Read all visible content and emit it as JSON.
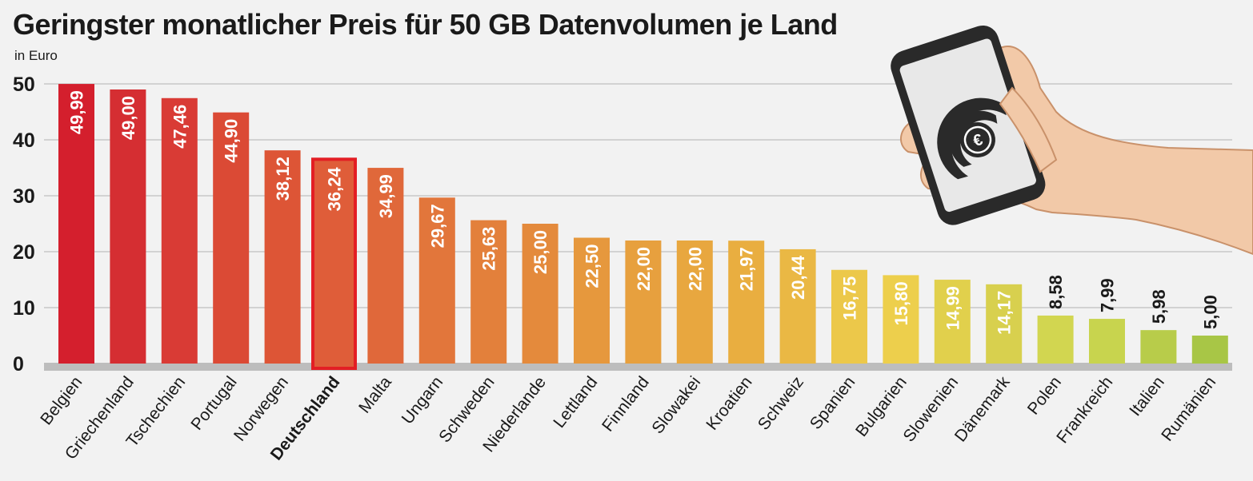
{
  "chart_data": {
    "type": "bar",
    "title": "Geringster monatlicher Preis für 50 GB Datenvolumen je Land",
    "subtitle": "in Euro",
    "xlabel": "",
    "ylabel": "in Euro",
    "ylim": [
      0,
      50
    ],
    "yticks": [
      0,
      10,
      20,
      30,
      40,
      50
    ],
    "grid": true,
    "highlight": "Deutschland",
    "categories": [
      "Belgien",
      "Griechenland",
      "Tschechien",
      "Portugal",
      "Norwegen",
      "Deutschland",
      "Malta",
      "Ungarn",
      "Schweden",
      "Niederlande",
      "Lettland",
      "Finnland",
      "Slowakei",
      "Kroatien",
      "Schweiz",
      "Spanien",
      "Bulgarien",
      "Slowenien",
      "Dänemark",
      "Polen",
      "Frankreich",
      "Italien",
      "Rumänien"
    ],
    "values": [
      49.99,
      49.0,
      47.46,
      44.9,
      38.12,
      36.24,
      34.99,
      29.67,
      25.63,
      25.0,
      22.5,
      22.0,
      22.0,
      21.97,
      20.44,
      16.75,
      15.8,
      14.99,
      14.17,
      8.58,
      7.99,
      5.98,
      5.0
    ],
    "value_labels": [
      "49,99",
      "49,00",
      "47,46",
      "44,90",
      "38,12",
      "36,24",
      "34,99",
      "29,67",
      "25,63",
      "25,00",
      "22,50",
      "22,00",
      "22,00",
      "21,97",
      "20,44",
      "16,75",
      "15,80",
      "14,99",
      "14,17",
      "8,58",
      "7,99",
      "5,98",
      "5,00"
    ],
    "colors": [
      "#d41f2d",
      "#d52e32",
      "#d93b35",
      "#db4a35",
      "#dd5536",
      "#df5d39",
      "#e0683a",
      "#e2763b",
      "#e3803b",
      "#e48a3c",
      "#e6983d",
      "#e7a03e",
      "#e8a73f",
      "#e9ae40",
      "#eab844",
      "#ecc84a",
      "#edcf4c",
      "#e1d04c",
      "#d8d04e",
      "#d2d650",
      "#c8d44e",
      "#b8cc4a",
      "#a8c646"
    ],
    "highlight_color": "#e31e24",
    "axis_color": "#bdbdbd"
  }
}
